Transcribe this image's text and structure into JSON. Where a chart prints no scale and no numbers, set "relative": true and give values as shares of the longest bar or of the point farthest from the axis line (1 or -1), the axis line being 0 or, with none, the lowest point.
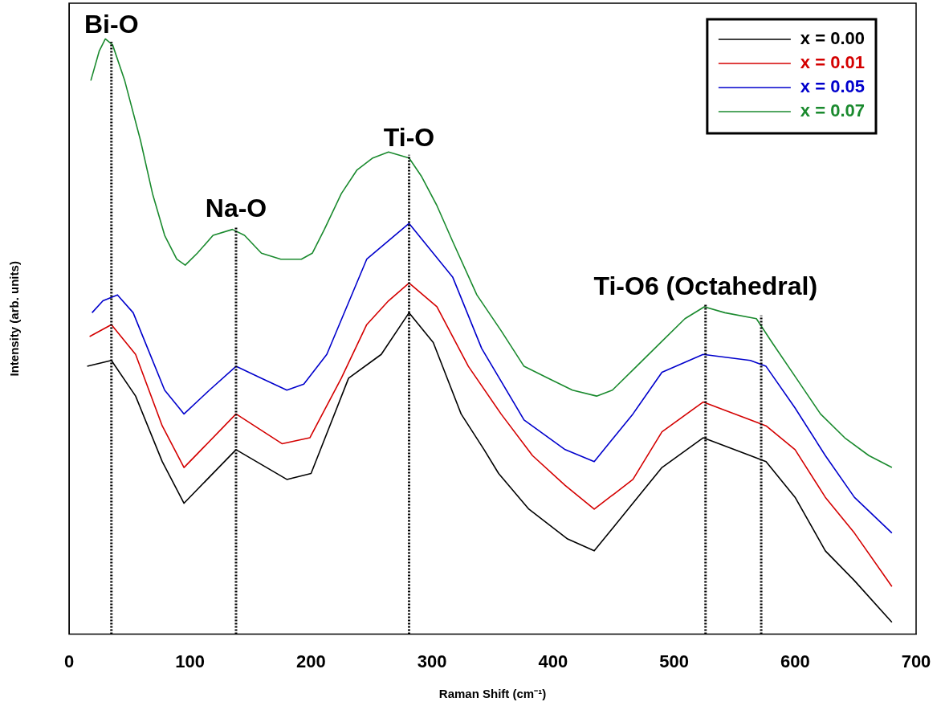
{
  "chart_data": {
    "type": "line",
    "xlabel": "Raman Shift (cm⁻¹)",
    "ylabel": "Intensity (arb. units)",
    "relative": true,
    "xlim": [
      0,
      700
    ],
    "xticks": [
      0,
      100,
      200,
      300,
      400,
      500,
      600,
      700
    ],
    "legend": "top right",
    "grid": false,
    "marker": "none",
    "line_style": "solid",
    "series": [
      {
        "name": "x = 0.00",
        "color": "#000000",
        "x": [
          15,
          35,
          55,
          77,
          95,
          138,
          180,
          200,
          231,
          258,
          281,
          301,
          324,
          343,
          355,
          380,
          412,
          434,
          466,
          490,
          524,
          563,
          576,
          600,
          625,
          649,
          680
        ],
        "values": [
          0.45,
          0.46,
          0.4,
          0.29,
          0.22,
          0.31,
          0.26,
          0.27,
          0.43,
          0.47,
          0.54,
          0.49,
          0.37,
          0.31,
          0.27,
          0.21,
          0.16,
          0.14,
          0.22,
          0.28,
          0.33,
          0.3,
          0.29,
          0.23,
          0.14,
          0.09,
          0.02
        ]
      },
      {
        "name": "x = 0.01",
        "color": "#d40000",
        "x": [
          17,
          35,
          55,
          77,
          95,
          138,
          176,
          199,
          225,
          246,
          264,
          281,
          304,
          330,
          357,
          383,
          410,
          434,
          466,
          490,
          524,
          563,
          576,
          600,
          625,
          649,
          680
        ],
        "values": [
          0.5,
          0.52,
          0.47,
          0.35,
          0.28,
          0.37,
          0.32,
          0.33,
          0.43,
          0.52,
          0.56,
          0.59,
          0.55,
          0.45,
          0.37,
          0.3,
          0.25,
          0.21,
          0.26,
          0.34,
          0.39,
          0.36,
          0.35,
          0.31,
          0.23,
          0.17,
          0.08
        ]
      },
      {
        "name": "x = 0.05",
        "color": "#0000cc",
        "x": [
          19,
          28,
          40,
          53,
          65,
          79,
          95,
          116,
          138,
          159,
          180,
          194,
          213,
          246,
          281,
          317,
          341,
          376,
          410,
          434,
          466,
          490,
          524,
          563,
          576,
          600,
          625,
          649,
          680
        ],
        "values": [
          0.54,
          0.56,
          0.57,
          0.54,
          0.48,
          0.41,
          0.37,
          0.41,
          0.45,
          0.43,
          0.41,
          0.42,
          0.47,
          0.63,
          0.69,
          0.6,
          0.48,
          0.36,
          0.31,
          0.29,
          0.37,
          0.44,
          0.47,
          0.46,
          0.45,
          0.38,
          0.3,
          0.23,
          0.17
        ]
      },
      {
        "name": "x = 0.07",
        "color": "#1a8a2e",
        "x": [
          18,
          25,
          30,
          36,
          46,
          59,
          69,
          79,
          89,
          96,
          106,
          119,
          135,
          145,
          159,
          175,
          192,
          201,
          211,
          225,
          238,
          251,
          264,
          281,
          291,
          304,
          317,
          337,
          357,
          376,
          396,
          416,
          436,
          449,
          469,
          489,
          509,
          525,
          542,
          568,
          581,
          601,
          621,
          641,
          661,
          680
        ],
        "values": [
          0.93,
          0.98,
          1.0,
          0.99,
          0.93,
          0.83,
          0.74,
          0.67,
          0.63,
          0.62,
          0.64,
          0.67,
          0.68,
          0.67,
          0.64,
          0.63,
          0.63,
          0.64,
          0.68,
          0.74,
          0.78,
          0.8,
          0.81,
          0.8,
          0.77,
          0.72,
          0.66,
          0.57,
          0.51,
          0.45,
          0.43,
          0.41,
          0.4,
          0.41,
          0.45,
          0.49,
          0.53,
          0.55,
          0.54,
          0.53,
          0.49,
          0.43,
          0.37,
          0.33,
          0.3,
          0.28
        ]
      }
    ],
    "ref_lines": [
      {
        "axis": "x",
        "value": 35,
        "label": "Bi-O",
        "line_style": "dotted"
      },
      {
        "axis": "x",
        "value": 138,
        "label": "Na-O",
        "line_style": "dotted"
      },
      {
        "axis": "x",
        "value": 281,
        "label": "Ti-O",
        "line_style": "dotted"
      },
      {
        "axis": "x",
        "value": 526,
        "label": "Ti-O6 (Octahedral)",
        "line_style": "dotted"
      },
      {
        "axis": "x",
        "value": 572,
        "label": null,
        "line_style": "dotted"
      }
    ]
  }
}
